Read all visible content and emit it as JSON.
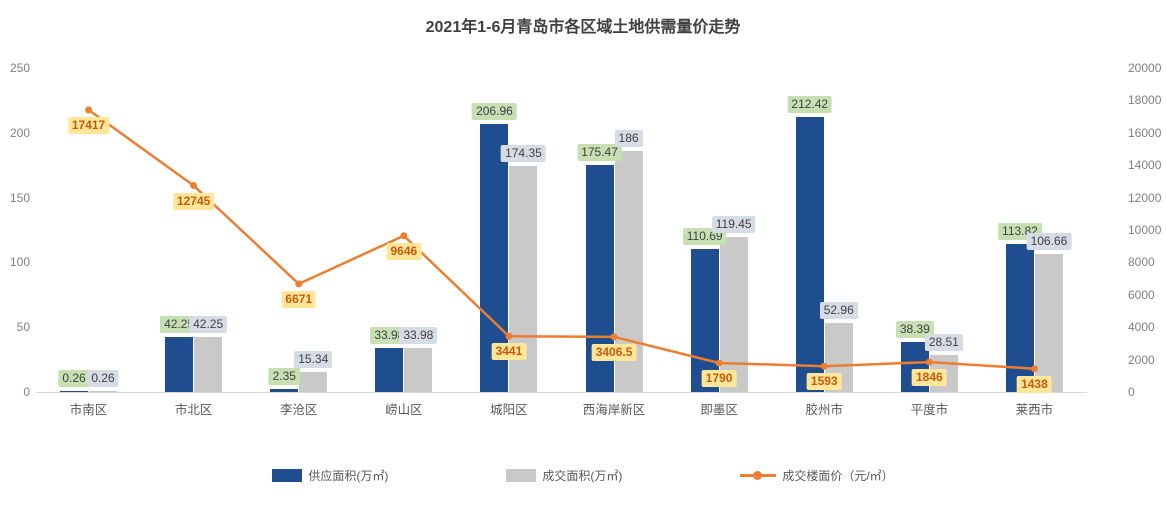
{
  "title": "2021年1-6月青岛市各区域土地供需量价走势",
  "colors": {
    "supply_bar": "#1e4e8f",
    "transaction_bar": "#c9c9c9",
    "price_line": "#ed7d31",
    "supply_label_bg": "#c6e0b4",
    "supply_label_text": "#404040",
    "transaction_label_bg": "#d6dce5",
    "transaction_label_text": "#404040",
    "price_label_bg": "#ffe699",
    "price_label_text": "#c55a11",
    "axis_text": "#808080",
    "category_text": "#595959",
    "axis_line": "#d9d9d9",
    "title_text": "#404040"
  },
  "chart_data": {
    "type": "bar+line combo",
    "title": "2021年1-6月青岛市各区域土地供需量价走势",
    "categories": [
      "市南区",
      "市北区",
      "李沧区",
      "崂山区",
      "城阳区",
      "西海岸新区",
      "即墨区",
      "胶州市",
      "平度市",
      "莱西市"
    ],
    "series": [
      {
        "name": "供应面积(万㎡)",
        "type": "bar",
        "axis": "left",
        "values": [
          0.26,
          42.25,
          2.35,
          33.98,
          206.96,
          175.47,
          110.69,
          212.42,
          38.39,
          113.82
        ],
        "labels": [
          "0.26",
          "42.25",
          "2.35",
          "33.98",
          "206.96",
          "175.47",
          "110.69",
          "212.42",
          "38.39",
          "113.82"
        ]
      },
      {
        "name": "成交面积(万㎡)",
        "type": "bar",
        "axis": "left",
        "values": [
          0.26,
          42.25,
          15.34,
          33.98,
          174.35,
          186,
          119.45,
          52.96,
          28.51,
          106.66
        ],
        "labels": [
          "0.26",
          "42.25",
          "15.34",
          "33.98",
          "174.35",
          "186",
          "119.45",
          "52.96",
          "28.51",
          "106.66"
        ]
      },
      {
        "name": "成交楼面价（元/㎡）",
        "type": "line",
        "axis": "right",
        "values": [
          17417,
          12745,
          6671,
          9646,
          3441,
          3406.5,
          1790,
          1593,
          1846,
          1438
        ],
        "labels": [
          "17417",
          "12745",
          "6671",
          "9646",
          "3441",
          "3406.5",
          "1790",
          "1593",
          "1846",
          "1438"
        ]
      }
    ],
    "left_axis": {
      "min": 0,
      "max": 250,
      "ticks": [
        0,
        50,
        100,
        150,
        200,
        250
      ]
    },
    "right_axis": {
      "min": 0,
      "max": 20000,
      "ticks": [
        0,
        2000,
        4000,
        6000,
        8000,
        10000,
        12000,
        14000,
        16000,
        18000,
        20000
      ]
    },
    "legend_position": "bottom",
    "grid": false
  }
}
